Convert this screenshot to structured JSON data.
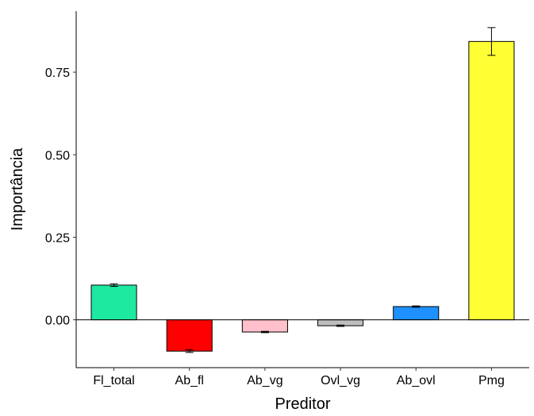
{
  "chart_data": {
    "type": "bar",
    "categories": [
      "Fl_total",
      "Ab_fl",
      "Ab_vg",
      "Ovl_vg",
      "Ab_ovl",
      "Pmg"
    ],
    "values": [
      0.105,
      -0.095,
      -0.037,
      -0.018,
      0.04,
      0.843
    ],
    "error": [
      0.004,
      0.004,
      0.002,
      0.002,
      0.002,
      0.042
    ],
    "colors": [
      "#1de9a0",
      "#ff0000",
      "#ffc0cb",
      "#bebebe",
      "#1e90ff",
      "#ffff33"
    ],
    "xlabel": "Preditor",
    "ylabel": "Importância",
    "ylim": [
      -0.145,
      0.935
    ],
    "yticks": [
      0.0,
      0.25,
      0.5,
      0.75
    ],
    "ytick_labels": [
      "0.00",
      "0.25",
      "0.50",
      "0.75"
    ],
    "grid": false,
    "legend": "none"
  }
}
